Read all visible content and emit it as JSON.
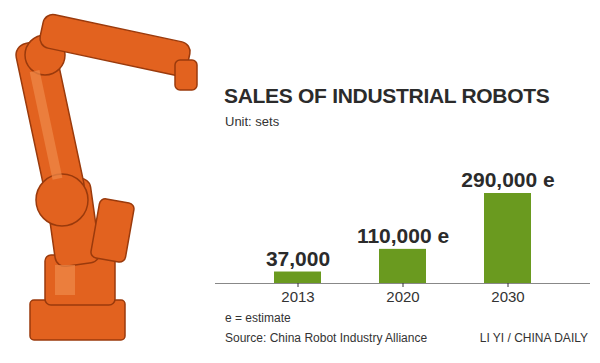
{
  "chart_data": {
    "type": "bar",
    "title": "SALES OF INDUSTRIAL ROBOTS",
    "subtitle": "Unit: sets",
    "categories": [
      "2013",
      "2020",
      "2030"
    ],
    "values": [
      37000,
      110000,
      290000
    ],
    "value_labels": [
      "37,000",
      "110,000 e",
      "290,000 e"
    ],
    "data_labels": true,
    "color": "#6a9a1f",
    "ylim": [
      0,
      290000
    ],
    "tick_labels": "x",
    "grid": false,
    "annotations": [
      "e = estimate",
      "Source: China Robot Industry Alliance",
      "LI YI / CHINA DAILY"
    ]
  }
}
